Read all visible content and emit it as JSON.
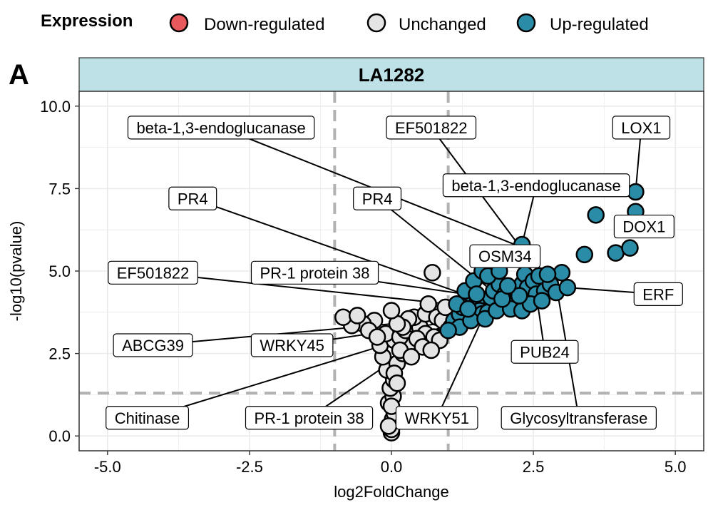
{
  "colors": {
    "down": "#e8595b",
    "unchanged": "#e4e4e4",
    "up": "#2b8ca8",
    "strip": "#bde1e7",
    "threshold": "#b2b2b2",
    "grid": "#ebebeb"
  },
  "chart_data": {
    "type": "scatter",
    "panel_letter": "A",
    "facet_label": "LA1282",
    "xlabel": "log2FoldChange",
    "ylabel": "-log10(pvalue)",
    "xlim": [
      -5.5,
      5.5
    ],
    "ylim": [
      -0.45,
      10.45
    ],
    "x_ticks": [
      -5.0,
      -2.5,
      0.0,
      2.5,
      5.0
    ],
    "x_tick_labels": [
      "-5.0",
      "-2.5",
      "0.0",
      "2.5",
      "5.0"
    ],
    "y_ticks": [
      0.0,
      2.5,
      5.0,
      7.5,
      10.0
    ],
    "y_tick_labels": [
      "0.0",
      "2.5",
      "5.0",
      "7.5",
      "10.0"
    ],
    "thresholds": {
      "x": [
        -1,
        1
      ],
      "y": 1.3
    },
    "legend": {
      "title": "Expression",
      "position": "top",
      "entries": [
        {
          "key": "down",
          "label": "Down-regulated"
        },
        {
          "key": "unchanged",
          "label": "Unchanged"
        },
        {
          "key": "up",
          "label": "Up-regulated"
        }
      ]
    },
    "series": [
      {
        "name": "Unchanged",
        "color_key": "unchanged",
        "points": [
          [
            0.0,
            0.1
          ],
          [
            0.0,
            0.2
          ],
          [
            0.02,
            0.5
          ],
          [
            0.05,
            0.7
          ],
          [
            -0.05,
            1.0
          ],
          [
            0.03,
            1.2
          ],
          [
            -0.02,
            1.45
          ],
          [
            0.04,
            1.7
          ],
          [
            -0.08,
            2.0
          ],
          [
            0.1,
            2.2
          ],
          [
            -0.15,
            2.4
          ],
          [
            0.2,
            2.5
          ],
          [
            -0.2,
            2.75
          ],
          [
            0.3,
            2.8
          ],
          [
            0.05,
            2.9
          ],
          [
            -0.1,
            3.1
          ],
          [
            0.15,
            3.0
          ],
          [
            0.25,
            3.2
          ],
          [
            0.35,
            3.4
          ],
          [
            0.5,
            3.3
          ],
          [
            0.6,
            3.1
          ],
          [
            0.75,
            3.0
          ],
          [
            0.85,
            2.9
          ],
          [
            0.45,
            2.95
          ],
          [
            0.55,
            2.7
          ],
          [
            0.7,
            2.6
          ],
          [
            0.4,
            3.6
          ],
          [
            0.6,
            3.7
          ],
          [
            0.8,
            3.6
          ],
          [
            0.9,
            3.5
          ],
          [
            0.3,
            3.55
          ],
          [
            0.2,
            3.3
          ],
          [
            -0.3,
            3.5
          ],
          [
            -0.5,
            3.4
          ],
          [
            -0.7,
            3.35
          ],
          [
            -0.85,
            3.6
          ],
          [
            -0.6,
            3.65
          ],
          [
            -0.4,
            3.2
          ],
          [
            0.1,
            3.4
          ],
          [
            0.65,
            4.0
          ],
          [
            0.95,
            3.9
          ],
          [
            0.72,
            4.95
          ],
          [
            0.0,
            3.8
          ],
          [
            0.15,
            2.6
          ],
          [
            -0.25,
            3.0
          ],
          [
            0.35,
            2.4
          ],
          [
            0.05,
            1.9
          ],
          [
            0.1,
            1.6
          ],
          [
            -0.05,
            0.3
          ],
          [
            0.0,
            0.9
          ]
        ]
      },
      {
        "name": "Up-regulated",
        "color_key": "up",
        "points": [
          [
            1.05,
            3.3
          ],
          [
            1.1,
            3.5
          ],
          [
            1.2,
            3.7
          ],
          [
            1.25,
            3.9
          ],
          [
            1.3,
            4.1
          ],
          [
            1.4,
            4.3
          ],
          [
            1.5,
            4.0
          ],
          [
            1.55,
            3.8
          ],
          [
            1.6,
            3.7
          ],
          [
            1.7,
            3.75
          ],
          [
            1.75,
            4.2
          ],
          [
            1.8,
            4.4
          ],
          [
            1.9,
            4.6
          ],
          [
            2.0,
            4.3
          ],
          [
            2.1,
            4.0
          ],
          [
            2.2,
            4.45
          ],
          [
            2.3,
            4.6
          ],
          [
            2.35,
            4.9
          ],
          [
            2.4,
            4.5
          ],
          [
            2.5,
            4.7
          ],
          [
            2.55,
            4.3
          ],
          [
            2.6,
            4.85
          ],
          [
            2.7,
            4.4
          ],
          [
            2.8,
            4.6
          ],
          [
            2.9,
            4.35
          ],
          [
            3.0,
            4.95
          ],
          [
            3.1,
            4.5
          ],
          [
            1.3,
            4.4
          ],
          [
            1.45,
            4.7
          ],
          [
            1.6,
            5.0
          ],
          [
            1.7,
            4.85
          ],
          [
            1.9,
            5.0
          ],
          [
            2.3,
            5.8
          ],
          [
            1.2,
            3.3
          ],
          [
            1.4,
            3.5
          ],
          [
            1.65,
            3.55
          ],
          [
            1.85,
            3.8
          ],
          [
            2.1,
            3.85
          ],
          [
            2.3,
            3.8
          ],
          [
            2.45,
            4.0
          ],
          [
            2.65,
            4.1
          ],
          [
            1.15,
            4.0
          ],
          [
            1.35,
            3.85
          ],
          [
            1.5,
            4.3
          ],
          [
            1.95,
            4.15
          ],
          [
            2.25,
            4.25
          ],
          [
            3.4,
            5.5
          ],
          [
            3.6,
            6.7
          ],
          [
            3.95,
            5.55
          ],
          [
            4.2,
            5.7
          ],
          [
            4.3,
            6.8
          ],
          [
            4.3,
            7.4
          ],
          [
            1.0,
            3.2
          ],
          [
            2.05,
            4.55
          ],
          [
            2.75,
            4.9
          ]
        ]
      }
    ],
    "labels": [
      {
        "text": "beta-1,3-endoglucanase",
        "x": -3.0,
        "y": 9.35,
        "px": 2.25,
        "py": 5.75
      },
      {
        "text": "EF501822",
        "x": 0.7,
        "y": 9.35,
        "px": 2.28,
        "py": 5.7
      },
      {
        "text": "LOX1",
        "x": 4.4,
        "y": 9.35,
        "px": 4.3,
        "py": 7.4
      },
      {
        "text": "beta-1,3-endoglucanase",
        "x": 2.55,
        "y": 7.6,
        "px": 2.3,
        "py": 5.8
      },
      {
        "text": "PR4",
        "x": -3.5,
        "y": 7.2,
        "px": 1.6,
        "py": 4.1
      },
      {
        "text": "PR4",
        "x": -0.25,
        "y": 7.2,
        "px": 1.7,
        "py": 4.5
      },
      {
        "text": "DOX1",
        "x": 4.45,
        "y": 6.35,
        "px": 4.3,
        "py": 6.8
      },
      {
        "text": "OSM34",
        "x": 2.0,
        "y": 5.45,
        "px": 1.75,
        "py": 5.0
      },
      {
        "text": "EF501822",
        "x": -4.2,
        "y": 4.95,
        "px": 1.0,
        "py": 4.0
      },
      {
        "text": "PR-1 protein 38",
        "x": -1.35,
        "y": 4.95,
        "px": 1.5,
        "py": 4.25
      },
      {
        "text": "ERF",
        "x": 4.7,
        "y": 4.3,
        "px": 3.1,
        "py": 4.5
      },
      {
        "text": "ABCG39",
        "x": -4.2,
        "y": 2.75,
        "px": 1.3,
        "py": 3.6
      },
      {
        "text": "WRKY45",
        "x": -1.75,
        "y": 2.75,
        "px": 1.2,
        "py": 3.5
      },
      {
        "text": "PUB24",
        "x": 2.7,
        "y": 2.55,
        "px": 2.55,
        "py": 4.3
      },
      {
        "text": "Chitinase",
        "x": -4.3,
        "y": 0.55,
        "px": 1.1,
        "py": 3.4
      },
      {
        "text": "PR-1 protein 38",
        "x": -1.45,
        "y": 0.55,
        "px": 1.5,
        "py": 4.0
      },
      {
        "text": "WRKY51",
        "x": 0.8,
        "y": 0.55,
        "px": 1.8,
        "py": 4.3
      },
      {
        "text": "Glycosyltransferase",
        "x": 3.3,
        "y": 0.55,
        "px": 2.9,
        "py": 4.6
      }
    ]
  }
}
